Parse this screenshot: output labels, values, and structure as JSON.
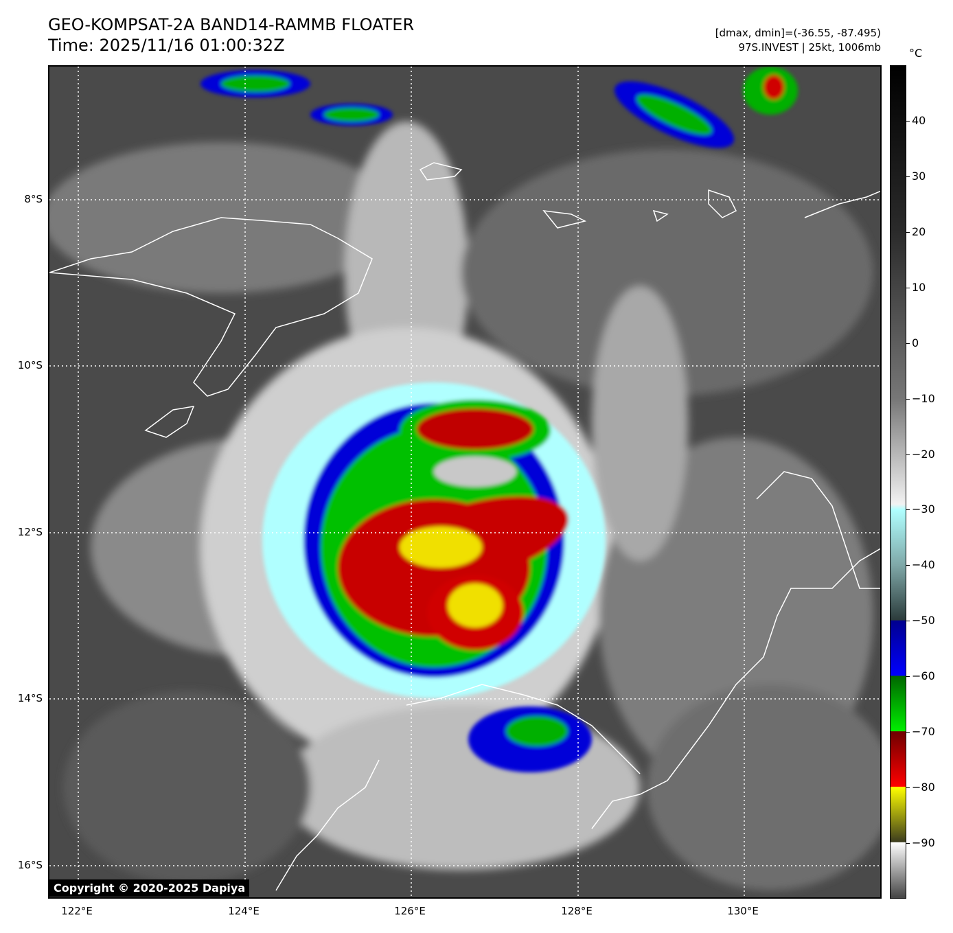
{
  "header": {
    "title_line1": "GEO-KOMPSAT-2A BAND14-RAMMB FLOATER",
    "title_line2": "Time: 2025/11/16 01:00:32Z",
    "info_line1": "[dmax, dmin]=(-36.55, -87.495)",
    "info_line2": "97S.INVEST | 25kt, 1006mb"
  },
  "map": {
    "lat_labels": [
      "8°S",
      "10°S",
      "12°S",
      "14°S",
      "16°S"
    ],
    "lon_labels": [
      "122°E",
      "124°E",
      "126°E",
      "128°E",
      "130°E"
    ],
    "copyright": "Copyright © 2020-2025 Dapiya",
    "background_color": "#555555",
    "coastline_color": "#ffffff",
    "grid_color": "#ffffff"
  },
  "colorbar": {
    "unit": "°C",
    "tick_labels": [
      "40",
      "30",
      "20",
      "10",
      "0",
      "−10",
      "−20",
      "−30",
      "−40",
      "−50",
      "−60",
      "−70",
      "−80",
      "−90"
    ],
    "color_stops": [
      {
        "value": 50,
        "color": "#000000"
      },
      {
        "value": 20,
        "color": "#2b2b2b"
      },
      {
        "value": -10,
        "color": "#777777"
      },
      {
        "value": -29,
        "color": "#f2f2f2"
      },
      {
        "value": -30,
        "color": "#b0ffff"
      },
      {
        "value": -40,
        "color": "#7fa8a8"
      },
      {
        "value": -49.9,
        "color": "#2b3b3b"
      },
      {
        "value": -50,
        "color": "#00008f"
      },
      {
        "value": -59.9,
        "color": "#0000ff"
      },
      {
        "value": -60,
        "color": "#006600"
      },
      {
        "value": -69.9,
        "color": "#00ee00"
      },
      {
        "value": -70,
        "color": "#6e0000"
      },
      {
        "value": -79.9,
        "color": "#ff0000"
      },
      {
        "value": -80,
        "color": "#ffff00"
      },
      {
        "value": -89.9,
        "color": "#3c3c1e"
      },
      {
        "value": -90,
        "color": "#ffffff"
      },
      {
        "value": -100,
        "color": "#444444"
      }
    ]
  }
}
